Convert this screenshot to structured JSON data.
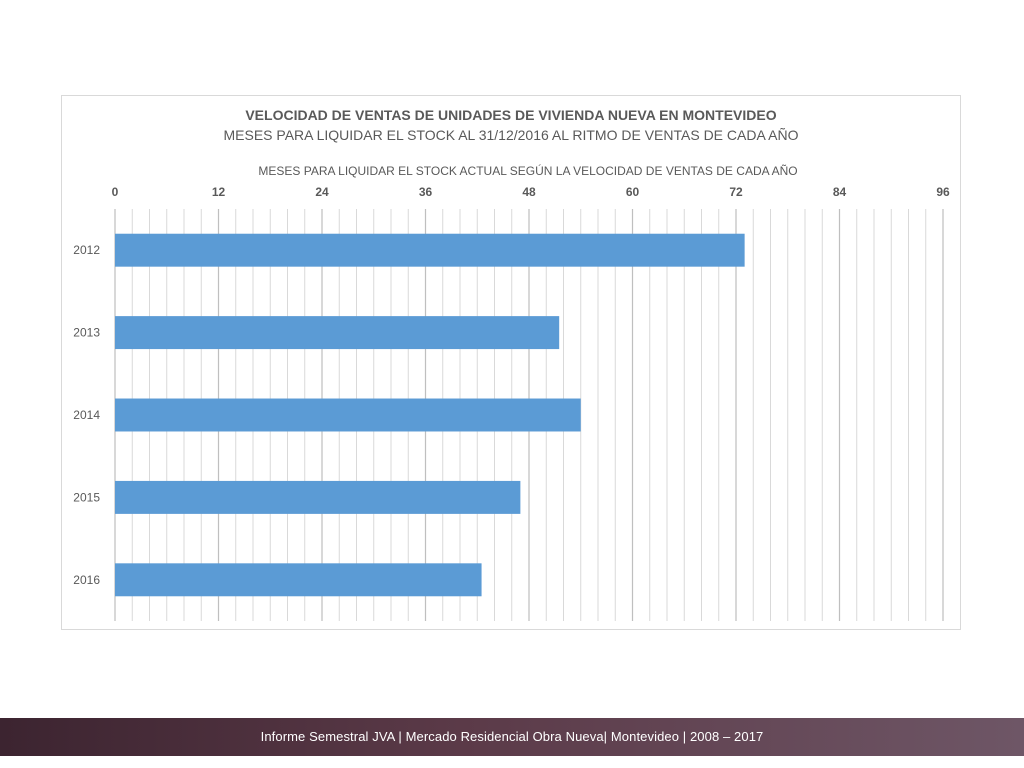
{
  "chart_data": {
    "type": "bar",
    "orientation": "horizontal",
    "title": "VELOCIDAD DE VENTAS DE UNIDADES DE VIVIENDA NUEVA EN MONTEVIDEO",
    "subtitle": "MESES PARA LIQUIDAR EL STOCK AL 31/12/2016 AL RITMO DE VENTAS DE CADA AÑO",
    "xlabel": "MESES PARA LIQUIDAR EL STOCK ACTUAL SEGÚN LA VELOCIDAD DE VENTAS DE CADA AÑO",
    "ylabel": "",
    "categories": [
      "2012",
      "2013",
      "2014",
      "2015",
      "2016"
    ],
    "values": [
      73,
      51.5,
      54,
      47,
      42.5
    ],
    "xlim": [
      0,
      96
    ],
    "x_ticks": [
      "0",
      "12",
      "24",
      "36",
      "48",
      "60",
      "72",
      "84",
      "96"
    ],
    "axis_position": "top",
    "bar_color": "#5b9bd5",
    "grid": true
  },
  "footer": {
    "text": "Informe Semestral JVA | Mercado Residencial Obra Nueva| Montevideo | 2008 – 2017"
  }
}
